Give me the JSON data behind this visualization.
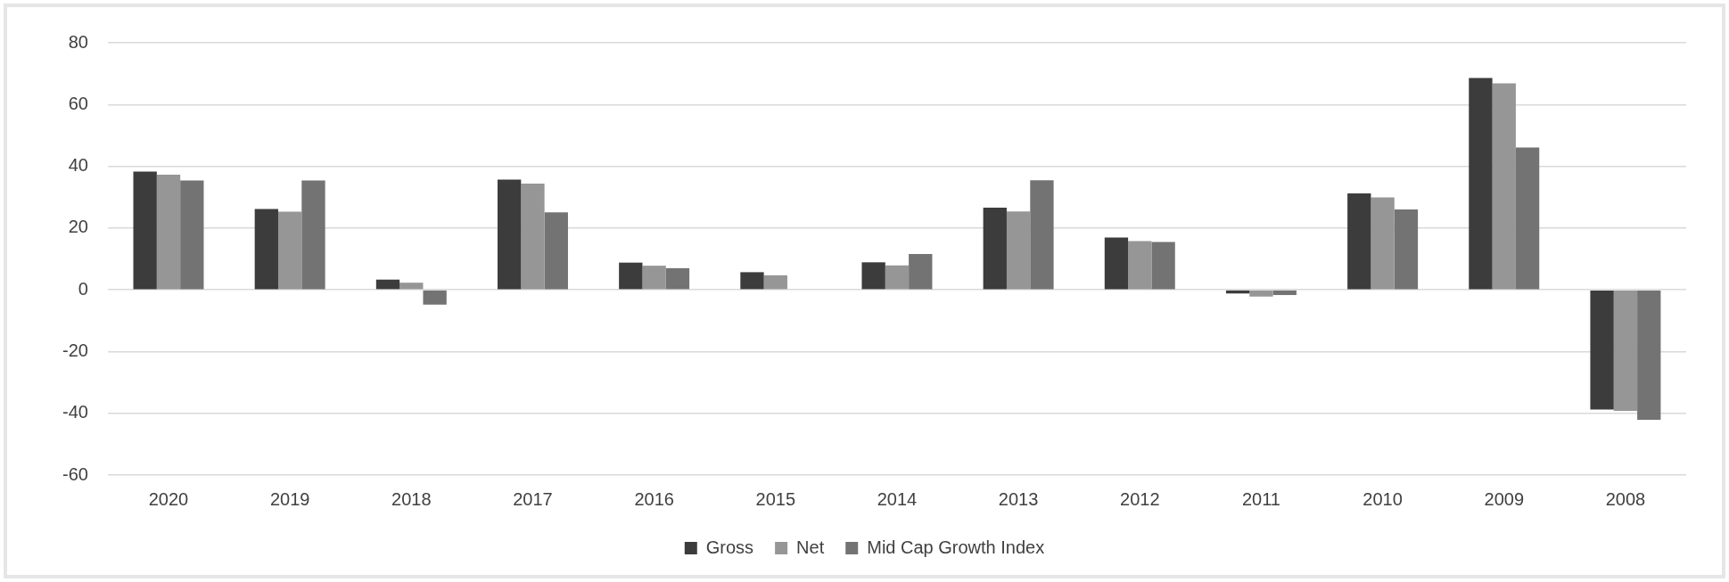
{
  "chart_data": {
    "type": "bar",
    "categories": [
      "2020",
      "2019",
      "2018",
      "2017",
      "2016",
      "2015",
      "2014",
      "2013",
      "2012",
      "2011",
      "2010",
      "2009",
      "2008"
    ],
    "series": [
      {
        "name": "Gross",
        "color": "#3c3c3c",
        "values": [
          38.3,
          26.2,
          3.3,
          35.7,
          8.8,
          5.7,
          8.9,
          26.6,
          16.9,
          -1.2,
          31.2,
          68.6,
          -38.8
        ]
      },
      {
        "name": "Net",
        "color": "#969696",
        "values": [
          37.3,
          25.3,
          2.3,
          34.4,
          7.8,
          4.7,
          7.9,
          25.4,
          15.8,
          -2.2,
          29.9,
          66.9,
          -39.2
        ]
      },
      {
        "name": "Mid Cap Growth Index",
        "color": "#737373",
        "values": [
          35.4,
          35.4,
          -4.8,
          25.1,
          7.0,
          null,
          11.6,
          35.5,
          15.5,
          -1.7,
          26.0,
          46.1,
          -42.1
        ]
      }
    ],
    "ylim": [
      -60,
      80
    ],
    "yticks": [
      -60,
      -40,
      -20,
      0,
      20,
      40,
      60,
      80
    ],
    "grid": "y",
    "legend": "bottom"
  }
}
